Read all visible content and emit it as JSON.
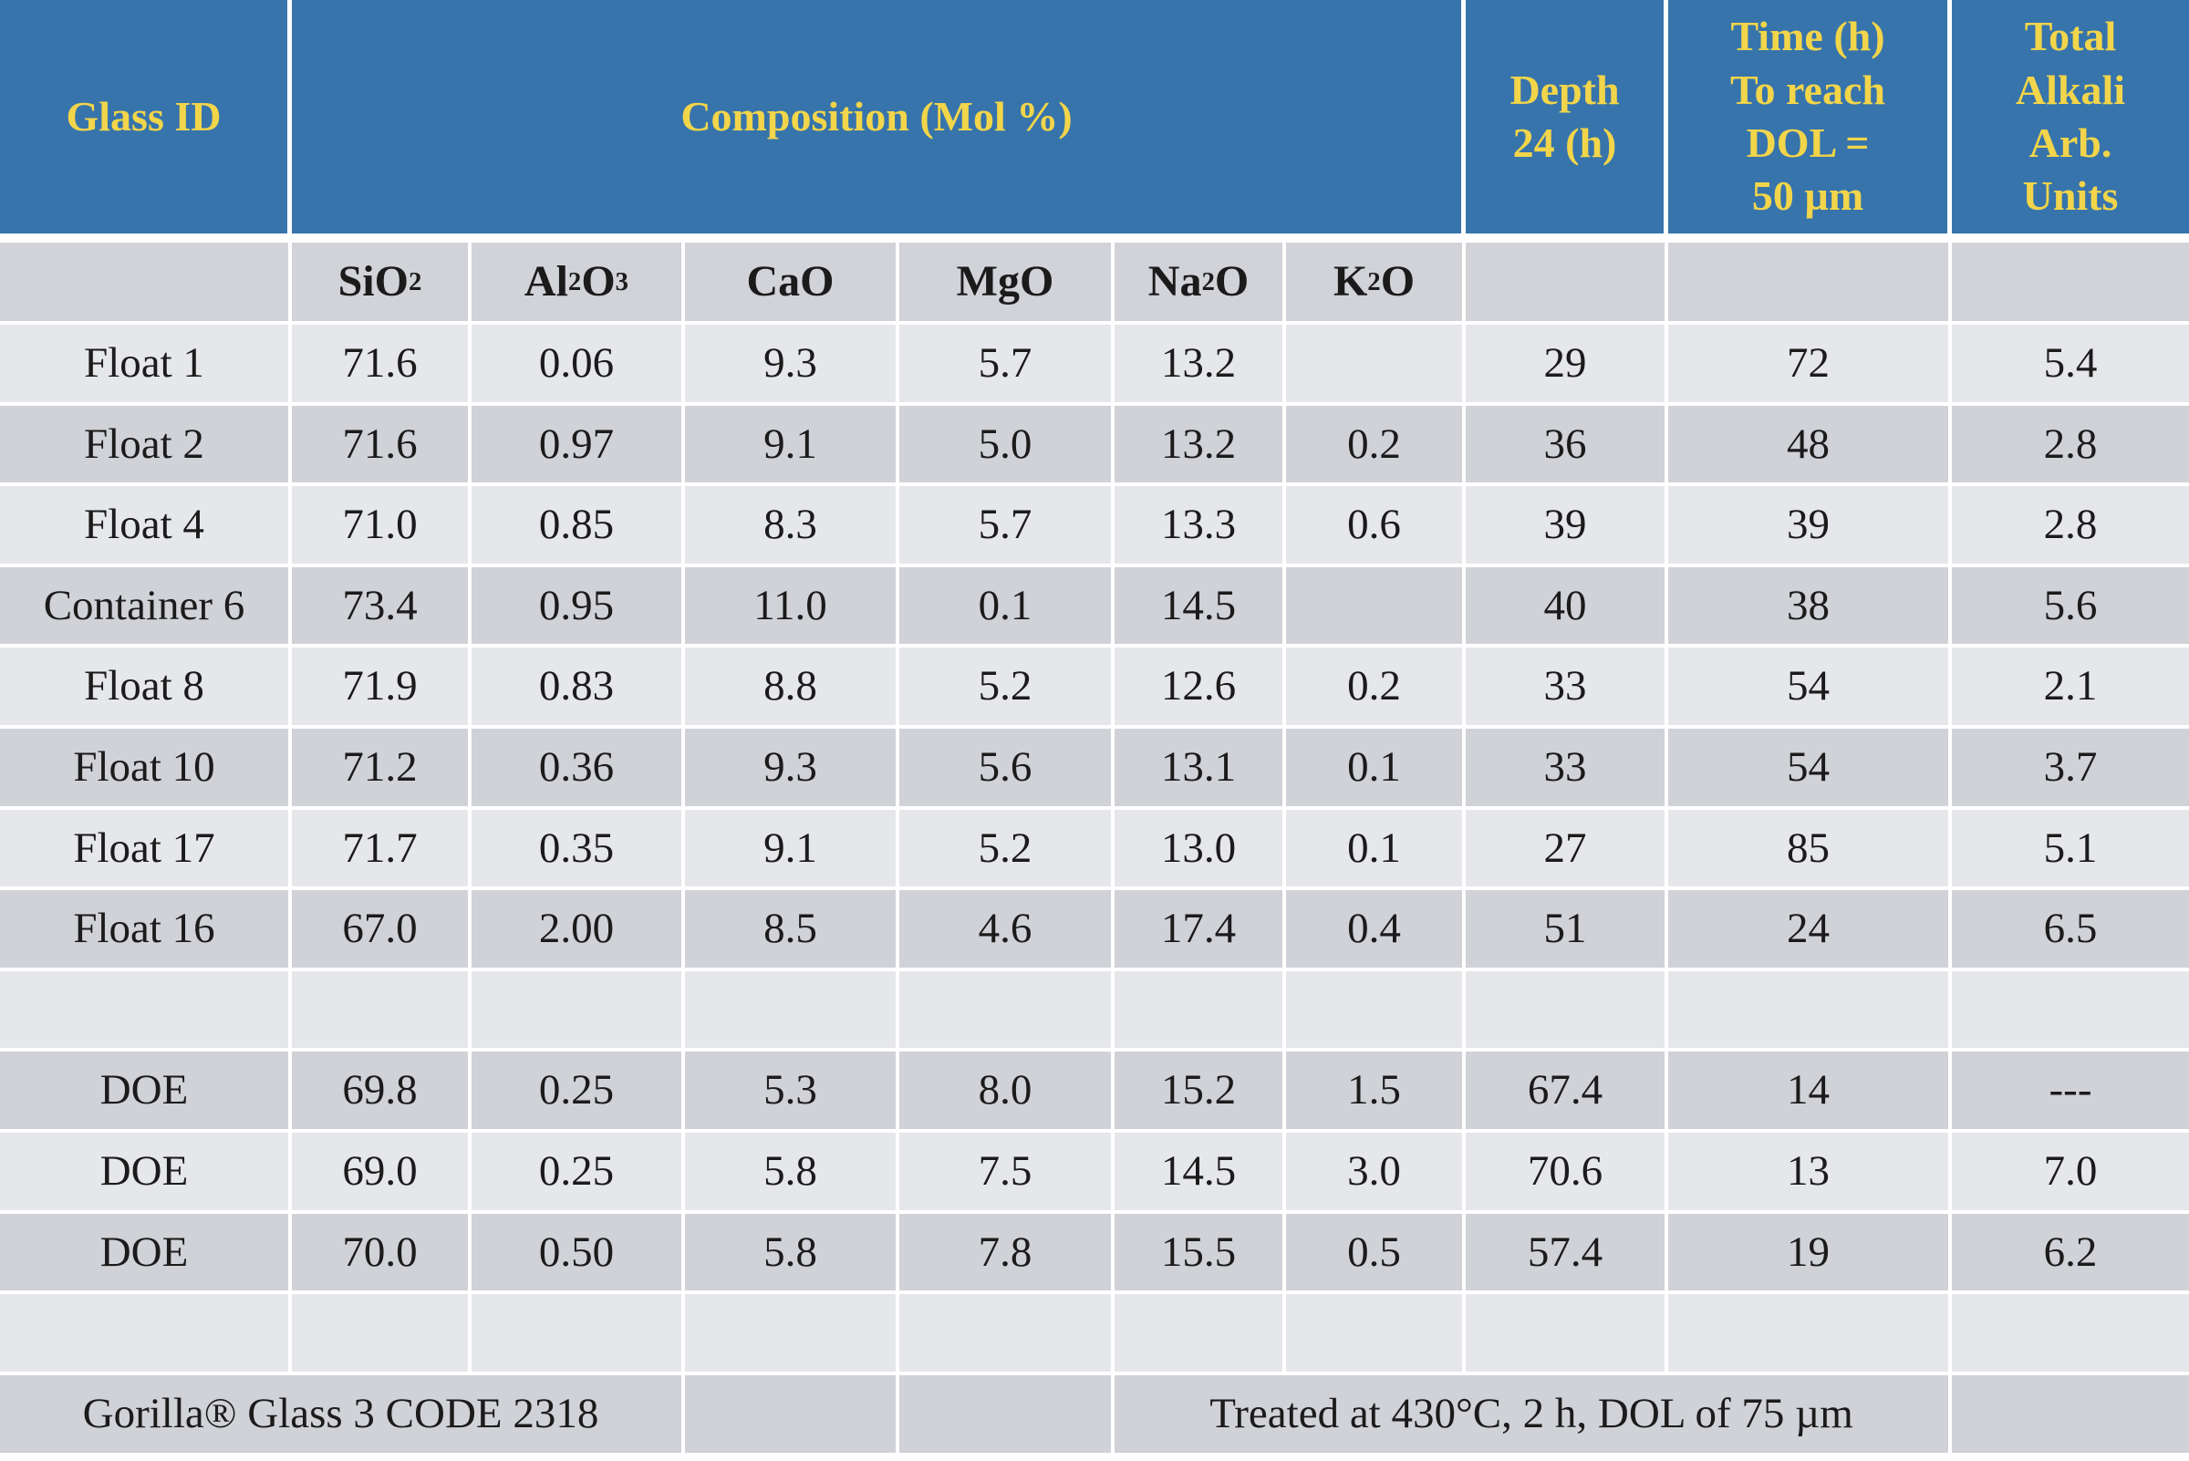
{
  "header": {
    "glass_id": "Glass ID",
    "composition": "Composition (Mol %)",
    "depth_line1": "Depth",
    "depth_line2": "24 (h)",
    "time_line1": "Time (h)",
    "time_line2": "To reach",
    "time_line3": "DOL =",
    "time_line4": "50 µm",
    "alkali_line1": "Total",
    "alkali_line2": "Alkali",
    "alkali_line3": "Arb.",
    "alkali_line4": "Units"
  },
  "oxides": [
    {
      "base": "SiO",
      "sub": "2",
      "tail": ""
    },
    {
      "base": "Al",
      "sub": "2",
      "tail": "O",
      "sub2": "3"
    },
    {
      "base": "CaO",
      "sub": "",
      "tail": ""
    },
    {
      "base": "MgO",
      "sub": "",
      "tail": ""
    },
    {
      "base": "Na",
      "sub": "2",
      "tail": "O"
    },
    {
      "base": "K",
      "sub": "2",
      "tail": "O"
    }
  ],
  "rows": [
    [
      "Float 1",
      "71.6",
      "0.06",
      "9.3",
      "5.7",
      "13.2",
      "",
      "29",
      "72",
      "5.4"
    ],
    [
      "Float 2",
      "71.6",
      "0.97",
      "9.1",
      "5.0",
      "13.2",
      "0.2",
      "36",
      "48",
      "2.8"
    ],
    [
      "Float 4",
      "71.0",
      "0.85",
      "8.3",
      "5.7",
      "13.3",
      "0.6",
      "39",
      "39",
      "2.8"
    ],
    [
      "Container 6",
      "73.4",
      "0.95",
      "11.0",
      "0.1",
      "14.5",
      "",
      "40",
      "38",
      "5.6"
    ],
    [
      "Float 8",
      "71.9",
      "0.83",
      "8.8",
      "5.2",
      "12.6",
      "0.2",
      "33",
      "54",
      "2.1"
    ],
    [
      "Float 10",
      "71.2",
      "0.36",
      "9.3",
      "5.6",
      "13.1",
      "0.1",
      "33",
      "54",
      "3.7"
    ],
    [
      "Float 17",
      "71.7",
      "0.35",
      "9.1",
      "5.2",
      "13.0",
      "0.1",
      "27",
      "85",
      "5.1"
    ],
    [
      "Float 16",
      "67.0",
      "2.00",
      "8.5",
      "4.6",
      "17.4",
      "0.4",
      "51",
      "24",
      "6.5"
    ]
  ],
  "doe_rows": [
    [
      "DOE",
      "69.8",
      "0.25",
      "5.3",
      "8.0",
      "15.2",
      "1.5",
      "67.4",
      "14",
      "---"
    ],
    [
      "DOE",
      "69.0",
      "0.25",
      "5.8",
      "7.5",
      "14.5",
      "3.0",
      "70.6",
      "13",
      "7.0"
    ],
    [
      "DOE",
      "70.0",
      "0.50",
      "5.8",
      "7.8",
      "15.5",
      "0.5",
      "57.4",
      "19",
      "6.2"
    ]
  ],
  "footer": {
    "gorilla": "Gorilla® Glass 3 CODE 2318",
    "treated": "Treated at 430°C, 2 h,  DOL of 75 µm"
  },
  "colors": {
    "header_bg": "#3774ab",
    "header_text": "#f2d54a",
    "row_light": "#e6e7ea",
    "row_dark": "#d0d2d7"
  }
}
